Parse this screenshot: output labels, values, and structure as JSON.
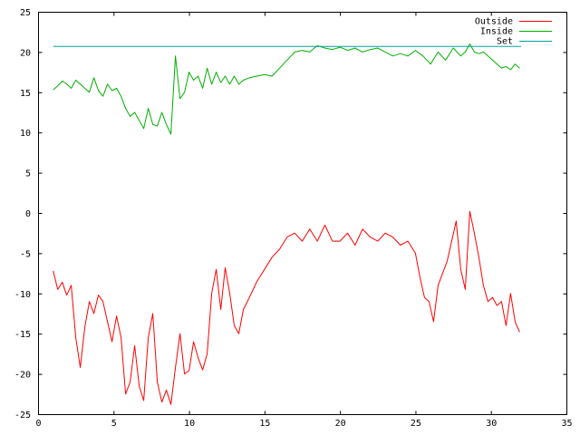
{
  "chart_data": {
    "type": "line",
    "title": "",
    "xlabel": "",
    "ylabel": "",
    "xlim": [
      0,
      35
    ],
    "ylim": [
      -25,
      25
    ],
    "xticks": [
      0,
      5,
      10,
      15,
      20,
      25,
      30,
      35
    ],
    "yticks": [
      -25,
      -20,
      -15,
      -10,
      -5,
      0,
      5,
      10,
      15,
      20,
      25
    ],
    "grid": false,
    "legend_position": "top-right",
    "series": [
      {
        "name": "Outside",
        "color": "#ff0000",
        "x": [
          1.0,
          1.3,
          1.6,
          1.9,
          2.2,
          2.5,
          2.8,
          3.1,
          3.4,
          3.7,
          4.0,
          4.3,
          4.6,
          4.9,
          5.2,
          5.5,
          5.8,
          6.1,
          6.4,
          6.7,
          7.0,
          7.3,
          7.6,
          7.9,
          8.2,
          8.5,
          8.8,
          9.1,
          9.4,
          9.7,
          10.0,
          10.3,
          10.6,
          10.9,
          11.2,
          11.5,
          11.8,
          12.1,
          12.4,
          12.7,
          13.0,
          13.3,
          13.6,
          14.0,
          14.5,
          15.0,
          15.5,
          16.0,
          16.5,
          17.0,
          17.5,
          18.0,
          18.5,
          19.0,
          19.5,
          20.0,
          20.5,
          21.0,
          21.5,
          22.0,
          22.5,
          23.0,
          23.5,
          24.0,
          24.5,
          25.0,
          25.3,
          25.6,
          25.9,
          26.2,
          26.5,
          26.8,
          27.1,
          27.4,
          27.7,
          28.0,
          28.3,
          28.6,
          28.9,
          29.2,
          29.5,
          29.8,
          30.1,
          30.4,
          30.7,
          31.0,
          31.3,
          31.6,
          31.9
        ],
        "values": [
          -7.2,
          -9.5,
          -8.6,
          -10.2,
          -9.0,
          -15.5,
          -19.2,
          -14.2,
          -11.0,
          -12.5,
          -10.2,
          -11.0,
          -13.5,
          -16.0,
          -12.8,
          -15.5,
          -22.5,
          -21.0,
          -16.5,
          -21.5,
          -23.3,
          -15.5,
          -12.5,
          -21.0,
          -23.5,
          -22.0,
          -23.8,
          -19.2,
          -15.0,
          -20.0,
          -19.6,
          -16.0,
          -18.0,
          -19.5,
          -17.5,
          -10.0,
          -7.0,
          -12.0,
          -6.8,
          -10.0,
          -14.0,
          -15.0,
          -12.0,
          -10.5,
          -8.5,
          -7.0,
          -5.5,
          -4.5,
          -3.0,
          -2.5,
          -3.5,
          -2.0,
          -3.5,
          -1.5,
          -3.5,
          -3.5,
          -2.5,
          -4.0,
          -2.0,
          -3.0,
          -3.5,
          -2.5,
          -3.0,
          -4.0,
          -3.5,
          -5.0,
          -8.0,
          -10.5,
          -11.0,
          -13.5,
          -9.0,
          -7.5,
          -6.0,
          -3.5,
          -1.0,
          -7.0,
          -9.5,
          0.2,
          -2.5,
          -5.5,
          -9.0,
          -11.0,
          -10.5,
          -11.5,
          -11.0,
          -14.0,
          -10.0,
          -13.5,
          -14.8
        ]
      },
      {
        "name": "Inside",
        "color": "#00b000",
        "x": [
          1.0,
          1.3,
          1.6,
          1.9,
          2.2,
          2.5,
          2.8,
          3.1,
          3.4,
          3.7,
          4.0,
          4.3,
          4.6,
          4.9,
          5.2,
          5.5,
          5.8,
          6.1,
          6.4,
          6.7,
          7.0,
          7.3,
          7.6,
          7.9,
          8.2,
          8.5,
          8.8,
          9.1,
          9.4,
          9.7,
          10.0,
          10.3,
          10.6,
          10.9,
          11.2,
          11.5,
          11.8,
          12.1,
          12.4,
          12.7,
          13.0,
          13.3,
          13.6,
          14.0,
          14.5,
          15.0,
          15.5,
          16.0,
          16.5,
          17.0,
          17.5,
          18.0,
          18.5,
          19.0,
          19.5,
          20.0,
          20.5,
          21.0,
          21.5,
          22.0,
          22.5,
          23.0,
          23.5,
          24.0,
          24.5,
          25.0,
          25.5,
          26.0,
          26.5,
          27.0,
          27.5,
          28.0,
          28.3,
          28.6,
          28.9,
          29.2,
          29.5,
          29.8,
          30.1,
          30.4,
          30.7,
          31.0,
          31.3,
          31.6,
          31.9
        ],
        "values": [
          15.3,
          15.8,
          16.4,
          16.0,
          15.5,
          16.5,
          16.0,
          15.5,
          15.0,
          16.8,
          15.2,
          14.5,
          16.0,
          15.2,
          15.5,
          14.5,
          13.0,
          12.0,
          12.5,
          11.5,
          10.5,
          13.0,
          11.0,
          10.8,
          12.5,
          11.0,
          9.8,
          19.5,
          14.2,
          15.0,
          17.5,
          16.5,
          17.0,
          15.5,
          18.0,
          16.0,
          17.5,
          16.2,
          17.0,
          16.0,
          17.0,
          16.0,
          16.5,
          16.8,
          17.0,
          17.2,
          17.0,
          18.0,
          19.0,
          20.0,
          20.2,
          20.0,
          20.8,
          20.5,
          20.3,
          20.6,
          20.2,
          20.5,
          20.0,
          20.3,
          20.5,
          20.0,
          19.5,
          19.8,
          19.5,
          20.2,
          19.5,
          18.5,
          20.0,
          19.0,
          20.5,
          19.5,
          20.0,
          21.0,
          20.0,
          19.8,
          20.0,
          19.5,
          19.0,
          18.5,
          18.0,
          18.2,
          17.8,
          18.5,
          18.0
        ]
      },
      {
        "name": "Set",
        "color": "#00a0a0",
        "x": [
          1.0,
          32.0
        ],
        "values": [
          20.7,
          20.7
        ]
      }
    ]
  }
}
